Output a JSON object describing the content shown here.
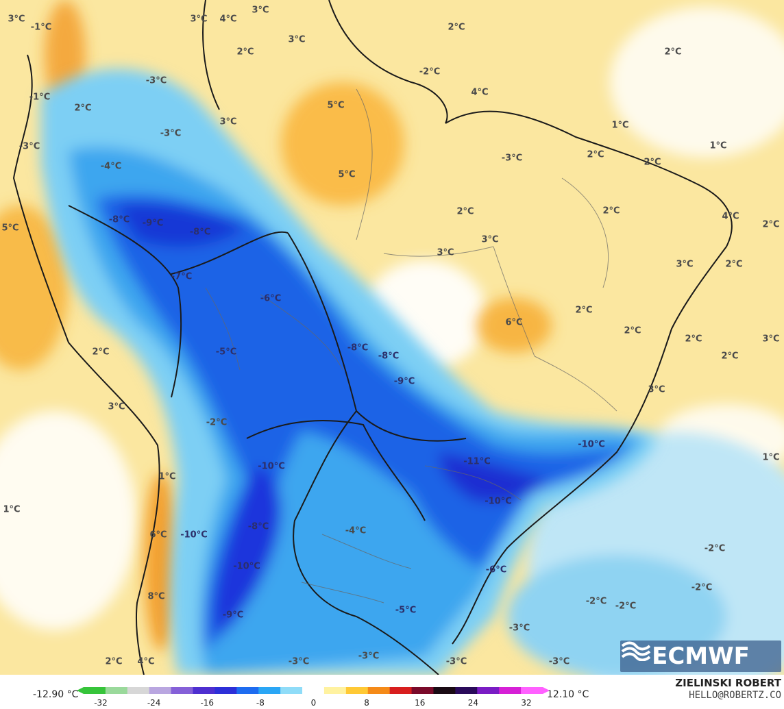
{
  "map": {
    "type": "temperature anomaly map",
    "region": "South America",
    "labels": [
      {
        "text": "3°C"
      },
      {
        "text": "-1°C"
      },
      {
        "text": "3°C"
      },
      {
        "text": "4°C"
      },
      {
        "text": "3°C"
      },
      {
        "text": "2°C"
      },
      {
        "text": "3°C"
      },
      {
        "text": "2°C"
      },
      {
        "text": "-2°C"
      },
      {
        "text": "2°C"
      },
      {
        "text": "-3°C"
      },
      {
        "text": "-1°C"
      },
      {
        "text": "2°C"
      },
      {
        "text": "4°C"
      },
      {
        "text": "5°C"
      },
      {
        "text": "3°C"
      },
      {
        "text": "-3°C"
      },
      {
        "text": "-3°C"
      },
      {
        "text": "1°C"
      },
      {
        "text": "-4°C"
      },
      {
        "text": "1°C"
      },
      {
        "text": "2°C"
      },
      {
        "text": "-3°C"
      },
      {
        "text": "2°C"
      },
      {
        "text": "5°C"
      },
      {
        "text": "-8°C"
      },
      {
        "text": "-9°C"
      },
      {
        "text": "-8°C"
      },
      {
        "text": "2°C"
      },
      {
        "text": "2°C"
      },
      {
        "text": "4°C"
      },
      {
        "text": "2°C"
      },
      {
        "text": "5°C"
      },
      {
        "text": "3°C"
      },
      {
        "text": "3°C"
      },
      {
        "text": "3°C"
      },
      {
        "text": "2°C"
      },
      {
        "text": "-7°C"
      },
      {
        "text": "-6°C"
      },
      {
        "text": "6°C"
      },
      {
        "text": "2°C"
      },
      {
        "text": "2°C"
      },
      {
        "text": "2°C"
      },
      {
        "text": "3°C"
      },
      {
        "text": "-8°C"
      },
      {
        "text": "-8°C"
      },
      {
        "text": "-5°C"
      },
      {
        "text": "2°C"
      },
      {
        "text": "2°C"
      },
      {
        "text": "-9°C"
      },
      {
        "text": "3°C"
      },
      {
        "text": "3°C"
      },
      {
        "text": "-2°C"
      },
      {
        "text": "-10°C"
      },
      {
        "text": "1°C"
      },
      {
        "text": "-11°C"
      },
      {
        "text": "-10°C"
      },
      {
        "text": "1°C"
      },
      {
        "text": "1°C"
      },
      {
        "text": "-10°C"
      },
      {
        "text": "-10°C"
      },
      {
        "text": "6°C"
      },
      {
        "text": "-8°C"
      },
      {
        "text": "-4°C"
      },
      {
        "text": "-2°C"
      },
      {
        "text": "-10°C"
      },
      {
        "text": "-6°C"
      },
      {
        "text": "-2°C"
      },
      {
        "text": "8°C"
      },
      {
        "text": "-2°C"
      },
      {
        "text": "-2°C"
      },
      {
        "text": "-5°C"
      },
      {
        "text": "-9°C"
      },
      {
        "text": "-3°C"
      },
      {
        "text": "2°C"
      },
      {
        "text": "4°C"
      },
      {
        "text": "-3°C"
      },
      {
        "text": "-3°C"
      },
      {
        "text": "-3°C"
      },
      {
        "text": "-3°C"
      }
    ]
  },
  "branding": {
    "logo_text": "ECMWF",
    "author": "ZIELINSKI ROBERT",
    "contact": "HELLO@ROBERTZ.CO"
  },
  "colorbar": {
    "min_label": "-12.90 °C",
    "max_label": "12.10 °C",
    "ticks": [
      "-32",
      "-24",
      "-16",
      "-8",
      "0",
      "8",
      "16",
      "24",
      "32"
    ],
    "colors": [
      "#36c43a",
      "#9ad99b",
      "#d7d7d7",
      "#b9a6e0",
      "#8560d8",
      "#4e2fd0",
      "#2d2fd8",
      "#1e6cf0",
      "#2aa6f5",
      "#8fdcf8",
      "#ffffff",
      "#fff2a0",
      "#ffc935",
      "#f58a18",
      "#d81e1e",
      "#7a0a2a",
      "#1a0a14",
      "#2a0a5a",
      "#7a1cc4",
      "#d620d6",
      "#ff60ff"
    ]
  }
}
